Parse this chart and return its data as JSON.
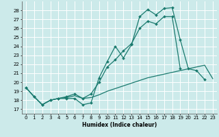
{
  "xlabel": "Humidex (Indice chaleur)",
  "xlim": [
    -0.5,
    23.5
  ],
  "ylim": [
    16.5,
    29.0
  ],
  "yticks": [
    17,
    18,
    19,
    20,
    21,
    22,
    23,
    24,
    25,
    26,
    27,
    28
  ],
  "xticks": [
    0,
    1,
    2,
    3,
    4,
    5,
    6,
    7,
    8,
    9,
    10,
    11,
    12,
    13,
    14,
    15,
    16,
    17,
    18,
    19,
    20,
    21,
    22,
    23
  ],
  "bg_color": "#cceaea",
  "grid_color": "#ffffff",
  "line_color": "#1a7a6e",
  "line1_x": [
    0,
    1,
    2,
    3,
    4,
    5,
    6,
    7,
    8,
    9,
    10,
    11,
    12,
    13,
    14,
    15,
    16,
    17,
    18,
    19,
    20,
    21,
    22,
    23
  ],
  "line1_y": [
    19.4,
    18.4,
    17.5,
    18.0,
    18.2,
    18.2,
    18.2,
    17.5,
    17.7,
    20.5,
    22.3,
    24.0,
    22.7,
    24.2,
    27.3,
    28.1,
    27.5,
    28.2,
    28.3,
    24.7,
    21.5,
    21.3,
    20.3,
    null
  ],
  "line2_x": [
    0,
    1,
    2,
    3,
    4,
    5,
    6,
    7,
    8,
    9,
    10,
    11,
    12,
    13,
    14,
    15,
    16,
    17,
    18,
    19,
    20,
    21,
    22,
    23
  ],
  "line2_y": [
    19.4,
    18.4,
    17.5,
    18.0,
    18.2,
    18.4,
    18.7,
    18.2,
    18.7,
    20.0,
    21.7,
    22.5,
    23.5,
    24.3,
    26.0,
    26.8,
    26.5,
    27.3,
    27.3,
    21.5,
    null,
    null,
    null,
    null
  ],
  "line3_x": [
    0,
    1,
    2,
    3,
    4,
    5,
    6,
    7,
    8,
    9,
    10,
    11,
    12,
    13,
    14,
    15,
    16,
    17,
    18,
    19,
    20,
    21,
    22,
    23
  ],
  "line3_y": [
    19.4,
    18.4,
    17.5,
    18.0,
    18.2,
    18.3,
    18.5,
    18.2,
    18.3,
    18.6,
    19.0,
    19.3,
    19.6,
    19.9,
    20.2,
    20.5,
    20.7,
    20.9,
    21.1,
    21.3,
    21.5,
    21.7,
    21.9,
    20.4
  ]
}
